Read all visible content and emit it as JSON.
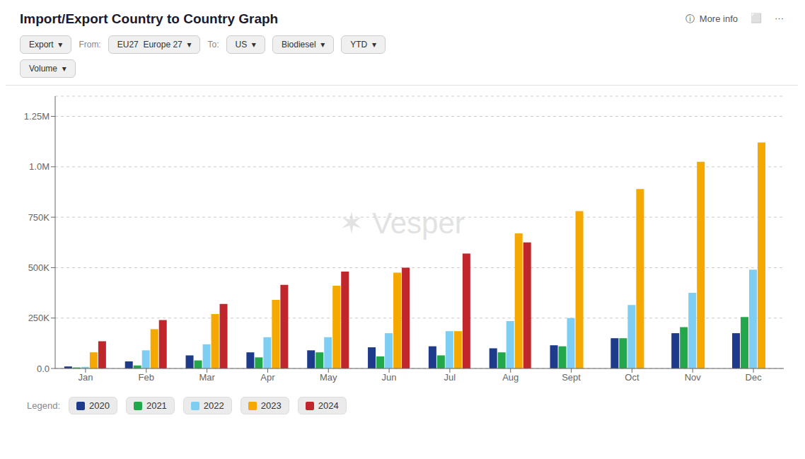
{
  "chart_data": {
    "type": "bar",
    "title": "Import/Export Country to Country Graph",
    "annotations": [
      "Export  ▾",
      "From:",
      "EU27  Europe 27  ▾",
      "To:",
      "US  ▾",
      "Biodiesel  ▾",
      "YTD  ▾",
      "Volume  ▾",
      "ⓘ  More info",
      "⬜",
      "···",
      "✶ Vesper",
      "Legend:"
    ],
    "categories": [
      "Jan",
      "Feb",
      "Mar",
      "Apr",
      "May",
      "Jun",
      "Jul",
      "Aug",
      "Sept",
      "Oct",
      "Nov",
      "Dec"
    ],
    "series": [
      {
        "name": "2020",
        "color": "#1e3a8a",
        "values": [
          10000,
          35000,
          65000,
          80000,
          90000,
          105000,
          110000,
          100000,
          115000,
          150000,
          175000,
          175000
        ]
      },
      {
        "name": "2021",
        "color": "#22a84a",
        "values": [
          5000,
          15000,
          40000,
          55000,
          80000,
          60000,
          65000,
          80000,
          110000,
          150000,
          205000,
          255000
        ]
      },
      {
        "name": "2022",
        "color": "#7ecef4",
        "values": [
          8000,
          90000,
          120000,
          155000,
          155000,
          175000,
          185000,
          235000,
          250000,
          315000,
          375000,
          490000
        ]
      },
      {
        "name": "2023",
        "color": "#f5a800",
        "values": [
          80000,
          195000,
          270000,
          340000,
          410000,
          475000,
          185000,
          670000,
          780000,
          890000,
          1025000,
          1120000
        ]
      },
      {
        "name": "2024",
        "color": "#c0272d",
        "values": [
          135000,
          240000,
          320000,
          415000,
          480000,
          500000,
          570000,
          625000,
          0,
          0,
          0,
          0
        ]
      }
    ],
    "ylim": [
      0,
      1350000
    ],
    "yticks": [
      {
        "value": 0,
        "label": "0.0"
      },
      {
        "value": 250000,
        "label": "250K"
      },
      {
        "value": 500000,
        "label": "500K"
      },
      {
        "value": 750000,
        "label": "750K"
      },
      {
        "value": 1000000,
        "label": "1.0M"
      },
      {
        "value": 1250000,
        "label": "1.25M"
      }
    ],
    "grid": true,
    "legend": "bottom"
  }
}
